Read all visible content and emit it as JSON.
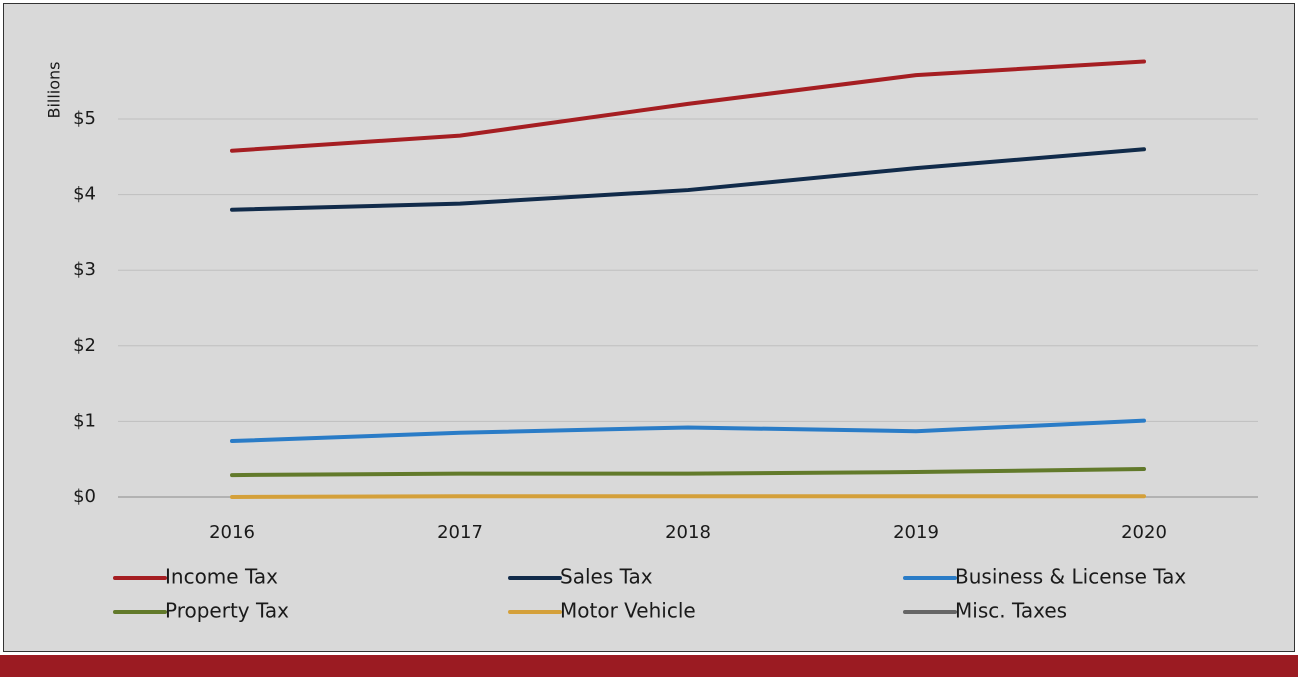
{
  "chart_data": {
    "type": "line",
    "y_axis_label": "Billions",
    "categories": [
      "2016",
      "2017",
      "2018",
      "2019",
      "2020"
    ],
    "series": [
      {
        "name": "Income Tax",
        "color": "#a51e22",
        "values": [
          4.58,
          4.78,
          5.2,
          5.58,
          5.76
        ]
      },
      {
        "name": "Sales Tax",
        "color": "#112b4a",
        "values": [
          3.8,
          3.88,
          4.06,
          4.35,
          4.6
        ]
      },
      {
        "name": "Business & License Tax",
        "color": "#2a7cc7",
        "values": [
          0.74,
          0.85,
          0.92,
          0.87,
          1.01
        ]
      },
      {
        "name": "Property Tax",
        "color": "#627a2b",
        "values": [
          0.29,
          0.31,
          0.31,
          0.33,
          0.37
        ]
      },
      {
        "name": "Motor Vehicle",
        "color": "#d4a03a",
        "values": [
          0,
          0.01,
          0.01,
          0.01,
          0.01
        ]
      },
      {
        "name": "Misc. Taxes",
        "color": "#666666",
        "values": [
          0,
          0,
          0,
          0,
          0
        ]
      }
    ],
    "ylim": [
      0,
      6
    ],
    "yticks": [
      {
        "value": 0,
        "label": "$0"
      },
      {
        "value": 1,
        "label": "$1"
      },
      {
        "value": 2,
        "label": "$2"
      },
      {
        "value": 3,
        "label": "$3"
      },
      {
        "value": 4,
        "label": "$4"
      },
      {
        "value": 5,
        "label": "$5"
      }
    ],
    "grid": true
  }
}
